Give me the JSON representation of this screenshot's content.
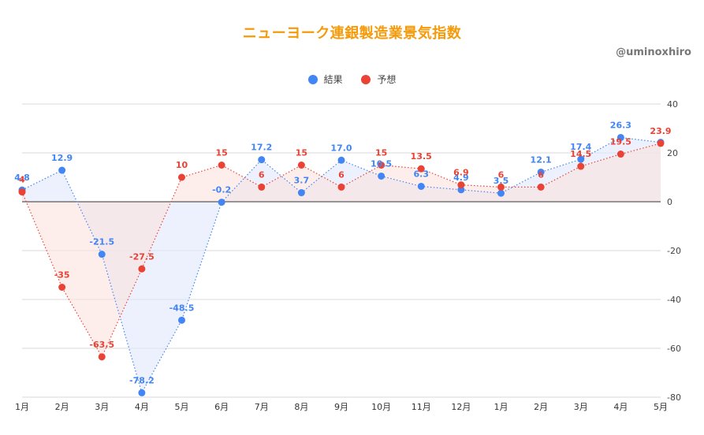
{
  "title": "ニューヨーク連銀製造業景気指数",
  "watermark": "@uminoxhiro",
  "colors": {
    "title": "#f59b0b",
    "actual": "#4285f4",
    "forecast": "#ea4335",
    "actual_fill": "#dfe8fb",
    "forecast_fill": "#fbe3e0"
  },
  "chart_data": {
    "type": "line",
    "x": [
      "1月",
      "2月",
      "3月",
      "4月",
      "5月",
      "6月",
      "7月",
      "8月",
      "9月",
      "10月",
      "11月",
      "12月",
      "1月",
      "2月",
      "3月",
      "4月",
      "5月"
    ],
    "series": [
      {
        "name": "結果",
        "values": [
          4.8,
          12.9,
          -21.5,
          -78.2,
          -48.5,
          -0.2,
          17.2,
          3.7,
          17.0,
          10.5,
          6.3,
          4.9,
          3.5,
          12.1,
          17.4,
          26.3,
          24.3
        ],
        "labels": [
          "4.8",
          "12.9",
          "-21.5",
          "-78.2",
          "-48.5",
          "-0.2",
          "17.2",
          "3.7",
          "17.0",
          "10.5",
          "6.3",
          "4.9",
          "3.5",
          "12.1",
          "17.4",
          "26.3",
          ""
        ]
      },
      {
        "name": "予想",
        "values": [
          4,
          -35,
          -63.5,
          -27.5,
          10,
          15,
          6,
          15,
          6,
          15,
          13.5,
          6.9,
          6,
          6,
          14.5,
          19.5,
          23.9
        ],
        "labels": [
          "4",
          "-35",
          "-63.5",
          "-27.5",
          "10",
          "15",
          "6",
          "15",
          "6",
          "15",
          "13.5",
          "6.9",
          "6",
          "6",
          "14.5",
          "19.5",
          "23.9"
        ]
      }
    ],
    "ylim": [
      -80,
      40
    ],
    "yticks": [
      "40",
      "20",
      "0",
      "-20",
      "-40",
      "-60",
      "-80"
    ],
    "y_axis_side": "right",
    "grid": true,
    "legend": "top-center"
  }
}
